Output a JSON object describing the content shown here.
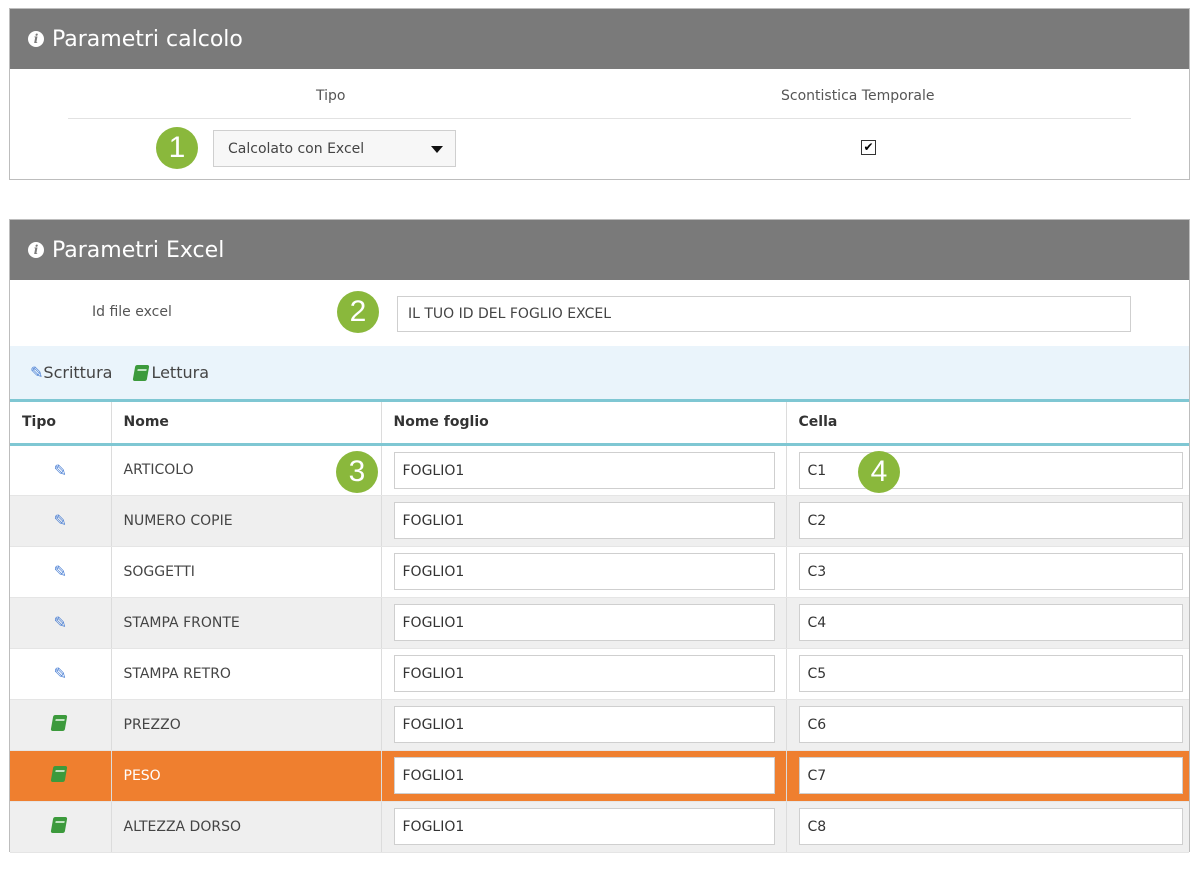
{
  "panel1": {
    "title": "Parametri calcolo",
    "col_tipo": "Tipo",
    "col_scontistica": "Scontistica Temporale",
    "select_value": "Calcolato con Excel",
    "checkbox_mark": "✔",
    "checkbox_checked": true
  },
  "panel2": {
    "title": "Parametri Excel",
    "id_label": "Id file excel",
    "id_value": "IL TUO ID DEL FOGLIO EXCEL",
    "tab_write": "Scrittura",
    "tab_read": "Lettura",
    "headers": [
      "Tipo",
      "Nome",
      "Nome foglio",
      "Cella"
    ],
    "rows": [
      {
        "type": "write",
        "nome": "ARTICOLO",
        "foglio": "FOGLIO1",
        "cella": "C1"
      },
      {
        "type": "write",
        "nome": "NUMERO COPIE",
        "foglio": "FOGLIO1",
        "cella": "C2"
      },
      {
        "type": "write",
        "nome": "SOGGETTI",
        "foglio": "FOGLIO1",
        "cella": "C3"
      },
      {
        "type": "write",
        "nome": "STAMPA FRONTE",
        "foglio": "FOGLIO1",
        "cella": "C4"
      },
      {
        "type": "write",
        "nome": "STAMPA RETRO",
        "foglio": "FOGLIO1",
        "cella": "C5"
      },
      {
        "type": "read",
        "nome": "PREZZO",
        "foglio": "FOGLIO1",
        "cella": "C6"
      },
      {
        "type": "read",
        "nome": "PESO",
        "foglio": "FOGLIO1",
        "cella": "C7",
        "highlight": true
      },
      {
        "type": "read",
        "nome": "ALTEZZA DORSO",
        "foglio": "FOGLIO1",
        "cella": "C8"
      }
    ]
  },
  "badges": [
    "1",
    "2",
    "3",
    "4"
  ],
  "icons": {
    "info": "info-icon",
    "write": "pencil-icon",
    "read": "book-icon"
  },
  "colors": {
    "header": "#7a7a7a",
    "badge": "#8ab83c",
    "highlight": "#ef7f2f",
    "accent_line": "#7fc7d3",
    "pencil": "#4a7fd4",
    "book": "#3c9a3c"
  }
}
